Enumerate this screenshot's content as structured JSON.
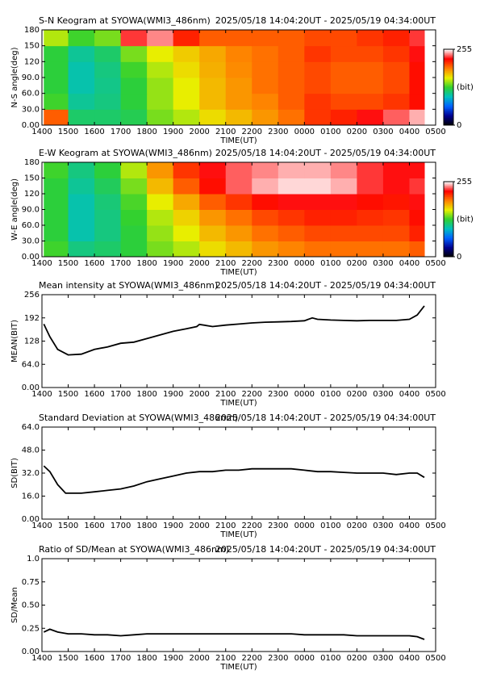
{
  "chart_data": [
    {
      "type": "heatmap",
      "title": "S-N Keogram at SYOWA(WMI3_486nm)",
      "subtitle": "2025/05/18 14:04:20UT - 2025/05/19 04:34:00UT",
      "x_label": "TIME(UT)",
      "y_label": "N-S angle(deg)",
      "xlim": [
        14,
        29
      ],
      "xticks": [
        {
          "value": 14,
          "label": "1400"
        },
        {
          "value": 15,
          "label": "1500"
        },
        {
          "value": 16,
          "label": "1600"
        },
        {
          "value": 17,
          "label": "1700"
        },
        {
          "value": 18,
          "label": "1800"
        },
        {
          "value": 19,
          "label": "1900"
        },
        {
          "value": 20,
          "label": "2000"
        },
        {
          "value": 21,
          "label": "2100"
        },
        {
          "value": 22,
          "label": "2200"
        },
        {
          "value": 23,
          "label": "2300"
        },
        {
          "value": 24,
          "label": "0000"
        },
        {
          "value": 25,
          "label": "0100"
        },
        {
          "value": 26,
          "label": "0200"
        },
        {
          "value": 27,
          "label": "0300"
        },
        {
          "value": 28,
          "label": "0400"
        },
        {
          "value": 29,
          "label": "0500"
        }
      ],
      "ylim": [
        0,
        180
      ],
      "yticks": [
        {
          "value": 0,
          "label": "0.00"
        },
        {
          "value": 30,
          "label": "30.0"
        },
        {
          "value": 60,
          "label": "60.0"
        },
        {
          "value": 90,
          "label": "90.0"
        },
        120,
        150,
        180
      ],
      "bins": [
        14.07,
        15,
        16,
        17,
        18,
        19,
        20,
        21,
        22,
        23,
        24,
        25,
        26,
        27,
        28,
        28.57
      ],
      "y_bins": [
        0,
        30,
        60,
        90,
        120,
        150,
        180
      ],
      "values": [
        [
          200,
          115,
          115,
          120,
          140,
          150,
          165,
          175,
          185,
          195,
          210,
          215,
          225,
          235,
          245
        ],
        [
          130,
          105,
          110,
          125,
          145,
          160,
          175,
          185,
          190,
          200,
          210,
          205,
          205,
          210,
          220
        ],
        [
          125,
          100,
          108,
          125,
          145,
          160,
          175,
          185,
          195,
          200,
          205,
          200,
          200,
          205,
          220
        ],
        [
          125,
          100,
          110,
          130,
          150,
          165,
          178,
          188,
          195,
          200,
          205,
          200,
          200,
          205,
          220
        ],
        [
          125,
          105,
          115,
          140,
          160,
          170,
          180,
          190,
          195,
          200,
          210,
          205,
          205,
          210,
          225
        ],
        [
          150,
          130,
          140,
          230,
          240,
          215,
          200,
          200,
          200,
          200,
          205,
          205,
          210,
          215,
          230
        ]
      ],
      "colorscale": [
        "#000000",
        "#000090",
        "#0060ff",
        "#00c0c0",
        "#30d030",
        "#e8f000",
        "#ff8000",
        "#ff0000",
        "#ffffff"
      ],
      "colorbar": {
        "lim": [
          0,
          255
        ],
        "ticks": [
          255,
          0
        ],
        "label": "(bit)"
      }
    },
    {
      "type": "heatmap",
      "title": "E-W Keogram at SYOWA(WMI3_486nm)",
      "subtitle": "2025/05/18 14:04:20UT - 2025/05/19 04:34:00UT",
      "x_label": "TIME(UT)",
      "y_label": "W-E angle(deg)",
      "xlim": [
        14,
        29
      ],
      "xticks": [
        {
          "value": 14,
          "label": "1400"
        },
        {
          "value": 15,
          "label": "1500"
        },
        {
          "value": 16,
          "label": "1600"
        },
        {
          "value": 17,
          "label": "1700"
        },
        {
          "value": 18,
          "label": "1800"
        },
        {
          "value": 19,
          "label": "1900"
        },
        {
          "value": 20,
          "label": "2000"
        },
        {
          "value": 21,
          "label": "2100"
        },
        {
          "value": 22,
          "label": "2200"
        },
        {
          "value": 23,
          "label": "2300"
        },
        {
          "value": 24,
          "label": "0000"
        },
        {
          "value": 25,
          "label": "0100"
        },
        {
          "value": 26,
          "label": "0200"
        },
        {
          "value": 27,
          "label": "0300"
        },
        {
          "value": 28,
          "label": "0400"
        },
        {
          "value": 29,
          "label": "0500"
        }
      ],
      "ylim": [
        0,
        180
      ],
      "yticks": [
        {
          "value": 0,
          "label": "0.00"
        },
        {
          "value": 30,
          "label": "30.0"
        },
        {
          "value": 60,
          "label": "60.0"
        },
        {
          "value": 90,
          "label": "90.0"
        },
        120,
        150,
        180
      ],
      "bins": [
        14.07,
        15,
        16,
        17,
        18,
        19,
        20,
        21,
        22,
        23,
        24,
        25,
        26,
        27,
        28,
        28.57
      ],
      "y_bins": [
        0,
        30,
        60,
        90,
        120,
        150,
        180
      ],
      "values": [
        [
          130,
          110,
          115,
          125,
          140,
          150,
          165,
          175,
          185,
          190,
          195,
          195,
          195,
          195,
          200
        ],
        [
          125,
          100,
          110,
          125,
          145,
          160,
          175,
          185,
          195,
          200,
          205,
          205,
          205,
          205,
          215
        ],
        [
          125,
          100,
          110,
          128,
          150,
          168,
          185,
          195,
          205,
          210,
          215,
          215,
          212,
          210,
          220
        ],
        [
          125,
          100,
          112,
          132,
          160,
          180,
          200,
          210,
          220,
          225,
          225,
          225,
          220,
          218,
          225
        ],
        [
          125,
          105,
          118,
          140,
          175,
          200,
          220,
          235,
          245,
          250,
          250,
          245,
          230,
          225,
          230
        ],
        [
          130,
          110,
          125,
          150,
          185,
          210,
          225,
          235,
          240,
          245,
          245,
          240,
          230,
          225,
          225
        ]
      ],
      "colorscale": [
        "#000000",
        "#000090",
        "#0060ff",
        "#00c0c0",
        "#30d030",
        "#e8f000",
        "#ff8000",
        "#ff0000",
        "#ffffff"
      ],
      "colorbar": {
        "lim": [
          0,
          255
        ],
        "ticks": [
          255,
          0
        ],
        "label": "(bit)"
      }
    },
    {
      "type": "line",
      "title": "Mean intensity at SYOWA(WMI3_486nm)",
      "subtitle": "2025/05/18 14:04:20UT - 2025/05/19 04:34:00UT",
      "x_label": "TIME(UT)",
      "y_label": "MEAN(BIT)",
      "color": "#000000",
      "xlim": [
        14,
        29
      ],
      "xticks": [
        {
          "value": 14,
          "label": "1400"
        },
        {
          "value": 15,
          "label": "1500"
        },
        {
          "value": 16,
          "label": "1600"
        },
        {
          "value": 17,
          "label": "1700"
        },
        {
          "value": 18,
          "label": "1800"
        },
        {
          "value": 19,
          "label": "1900"
        },
        {
          "value": 20,
          "label": "2000"
        },
        {
          "value": 21,
          "label": "2100"
        },
        {
          "value": 22,
          "label": "2200"
        },
        {
          "value": 23,
          "label": "2300"
        },
        {
          "value": 24,
          "label": "0000"
        },
        {
          "value": 25,
          "label": "0100"
        },
        {
          "value": 26,
          "label": "0200"
        },
        {
          "value": 27,
          "label": "0300"
        },
        {
          "value": 28,
          "label": "0400"
        },
        {
          "value": 29,
          "label": "0500"
        }
      ],
      "ylim": [
        0,
        256
      ],
      "yticks": [
        {
          "value": 0,
          "label": "0.00"
        },
        {
          "value": 64,
          "label": "64.0"
        },
        128,
        192,
        256
      ],
      "x": [
        14.07,
        14.3,
        14.6,
        15,
        15.5,
        16,
        16.5,
        17,
        17.5,
        18,
        18.5,
        19,
        19.5,
        19.9,
        20,
        20.5,
        21,
        21.5,
        22,
        22.5,
        23,
        23.5,
        24,
        24.3,
        24.5,
        25,
        25.5,
        26,
        26.5,
        27,
        27.5,
        28,
        28.3,
        28.57
      ],
      "values": [
        175,
        140,
        105,
        90,
        92,
        105,
        112,
        122,
        125,
        135,
        145,
        155,
        162,
        168,
        174,
        168,
        172,
        175,
        178,
        180,
        181,
        182,
        184,
        192,
        188,
        186,
        185,
        184,
        185,
        185,
        185,
        188,
        200,
        225
      ]
    },
    {
      "type": "line",
      "title": "Standard Deviation at SYOWA(WMI3_486nm)",
      "subtitle": "2025/05/18 14:04:20UT - 2025/05/19 04:34:00UT",
      "x_label": "TIME(UT)",
      "y_label": "SD(BIT)",
      "color": "#000000",
      "xlim": [
        14,
        29
      ],
      "xticks": [
        {
          "value": 14,
          "label": "1400"
        },
        {
          "value": 15,
          "label": "1500"
        },
        {
          "value": 16,
          "label": "1600"
        },
        {
          "value": 17,
          "label": "1700"
        },
        {
          "value": 18,
          "label": "1800"
        },
        {
          "value": 19,
          "label": "1900"
        },
        {
          "value": 20,
          "label": "2000"
        },
        {
          "value": 21,
          "label": "2100"
        },
        {
          "value": 22,
          "label": "2200"
        },
        {
          "value": 23,
          "label": "2300"
        },
        {
          "value": 24,
          "label": "0000"
        },
        {
          "value": 25,
          "label": "0100"
        },
        {
          "value": 26,
          "label": "0200"
        },
        {
          "value": 27,
          "label": "0300"
        },
        {
          "value": 28,
          "label": "0400"
        },
        {
          "value": 29,
          "label": "0500"
        }
      ],
      "ylim": [
        0,
        64
      ],
      "yticks": [
        {
          "value": 0,
          "label": "0.00"
        },
        {
          "value": 16,
          "label": "16.0"
        },
        {
          "value": 32,
          "label": "32.0"
        },
        {
          "value": 48,
          "label": "48.0"
        },
        {
          "value": 64,
          "label": "64.0"
        }
      ],
      "x": [
        14.07,
        14.3,
        14.6,
        14.9,
        15.5,
        16,
        16.5,
        17,
        17.5,
        18,
        18.5,
        19,
        19.5,
        20,
        20.5,
        21,
        21.5,
        22,
        22.5,
        23,
        23.5,
        24,
        24.5,
        25,
        25.5,
        26,
        26.5,
        27,
        27.5,
        28,
        28.3,
        28.57
      ],
      "values": [
        37,
        33,
        24,
        18,
        18,
        19,
        20,
        21,
        23,
        26,
        28,
        30,
        32,
        33,
        33,
        34,
        34,
        35,
        35,
        35,
        35,
        34,
        33,
        33,
        32.5,
        32,
        32,
        32,
        31,
        32,
        32,
        29
      ]
    },
    {
      "type": "line",
      "title": "Ratio of SD/Mean at SYOWA(WMI3_486nm)",
      "subtitle": "2025/05/18 14:04:20UT - 2025/05/19 04:34:00UT",
      "x_label": "TIME(UT)",
      "y_label": "SD/Mean",
      "color": "#000000",
      "xlim": [
        14,
        29
      ],
      "xticks": [
        {
          "value": 14,
          "label": "1400"
        },
        {
          "value": 15,
          "label": "1500"
        },
        {
          "value": 16,
          "label": "1600"
        },
        {
          "value": 17,
          "label": "1700"
        },
        {
          "value": 18,
          "label": "1800"
        },
        {
          "value": 19,
          "label": "1900"
        },
        {
          "value": 20,
          "label": "2000"
        },
        {
          "value": 21,
          "label": "2100"
        },
        {
          "value": 22,
          "label": "2200"
        },
        {
          "value": 23,
          "label": "2300"
        },
        {
          "value": 24,
          "label": "0000"
        },
        {
          "value": 25,
          "label": "0100"
        },
        {
          "value": 26,
          "label": "0200"
        },
        {
          "value": 27,
          "label": "0300"
        },
        {
          "value": 28,
          "label": "0400"
        },
        {
          "value": 29,
          "label": "0500"
        }
      ],
      "ylim": [
        0,
        1
      ],
      "yticks": [
        {
          "value": 0,
          "label": "0.00"
        },
        {
          "value": 0.25,
          "label": "0.25"
        },
        {
          "value": 0.5,
          "label": "0.50"
        },
        {
          "value": 0.75,
          "label": "0.75"
        },
        {
          "value": 1,
          "label": "1.0"
        }
      ],
      "x": [
        14.07,
        14.3,
        14.6,
        15,
        15.5,
        16,
        16.5,
        17,
        17.5,
        18,
        18.5,
        19,
        19.5,
        20,
        20.5,
        21,
        21.5,
        22,
        22.5,
        23,
        23.5,
        24,
        24.5,
        25,
        25.5,
        26,
        26.5,
        27,
        27.5,
        28,
        28.3,
        28.57
      ],
      "values": [
        0.21,
        0.24,
        0.21,
        0.19,
        0.19,
        0.18,
        0.18,
        0.17,
        0.18,
        0.19,
        0.19,
        0.19,
        0.19,
        0.19,
        0.19,
        0.19,
        0.19,
        0.19,
        0.19,
        0.19,
        0.19,
        0.18,
        0.18,
        0.18,
        0.18,
        0.17,
        0.17,
        0.17,
        0.17,
        0.17,
        0.16,
        0.13
      ]
    }
  ]
}
